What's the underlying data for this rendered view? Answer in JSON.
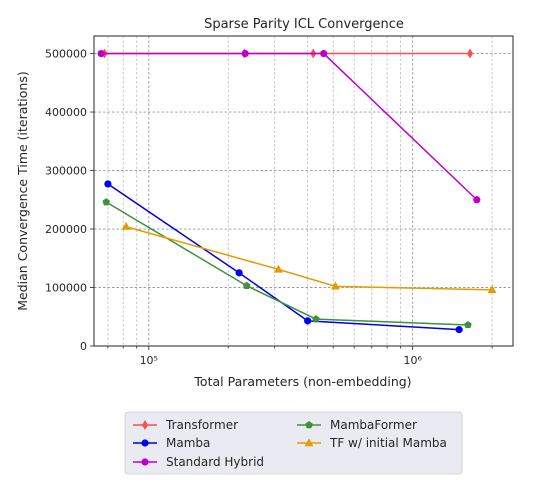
{
  "chart_data": {
    "type": "line",
    "title": "Sparse Parity ICL Convergence",
    "xlabel": "Total Parameters (non-embedding)",
    "ylabel": "Median Convergence Time (iterations)",
    "xscale": "log",
    "xlim": [
      62000,
      2400000
    ],
    "ylim": [
      0,
      530000
    ],
    "x_major_ticks": [
      100000,
      1000000
    ],
    "x_tick_labels": [
      "10⁵",
      "10⁶"
    ],
    "y_ticks": [
      0,
      100000,
      200000,
      300000,
      400000,
      500000
    ],
    "y_tick_labels": [
      "0",
      "100000",
      "200000",
      "300000",
      "400000",
      "500000"
    ],
    "grid": true,
    "legend_position": "bottom-center (below plot)",
    "series": [
      {
        "name": "Transformer",
        "color": "#ff4d4d",
        "marker": "diamond",
        "x": [
          68000,
          230000,
          420000,
          1650000
        ],
        "y": [
          500000,
          500000,
          500000,
          500000
        ]
      },
      {
        "name": "Mamba",
        "color": "#0000ee",
        "marker": "circle",
        "x": [
          70000,
          220000,
          400000,
          1500000
        ],
        "y": [
          277000,
          125000,
          43000,
          28000
        ]
      },
      {
        "name": "Standard Hybrid",
        "color": "#bb00cc",
        "marker": "circle",
        "x": [
          66000,
          232000,
          460000,
          1750000
        ],
        "y": [
          500000,
          500000,
          500000,
          250000
        ]
      },
      {
        "name": "MambaFormer",
        "color": "#3e923e",
        "marker": "pentagon",
        "x": [
          69000,
          235000,
          430000,
          1620000
        ],
        "y": [
          246000,
          103000,
          46000,
          36000
        ]
      },
      {
        "name": "TF w/ initial Mamba",
        "color": "#e69b00",
        "marker": "triangle",
        "x": [
          82000,
          310000,
          510000,
          2000000
        ],
        "y": [
          204000,
          131000,
          102000,
          96000
        ]
      }
    ]
  }
}
